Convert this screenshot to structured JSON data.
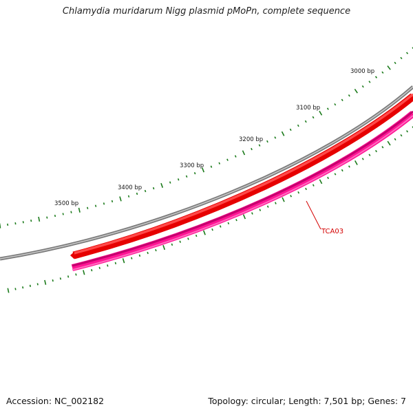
{
  "title": "Chlamydia muridarum Nigg plasmid pMoPn, complete sequence",
  "footer": {
    "accession": "Accession: NC_002182",
    "summary": "Topology: circular; Length: 7,501 bp; Genes: 7"
  },
  "ruler": {
    "tick_labels": [
      "3000 bp",
      "3100 bp",
      "3200 bp",
      "3300 bp",
      "3400 bp",
      "3500 bp"
    ]
  },
  "features": [
    {
      "label": "TCA03",
      "color": "#d40000"
    }
  ],
  "colors": {
    "backbone": "#7a7a7a",
    "forward_feature": "#ff0000",
    "reverse_feature": "#ff1493",
    "tick_marks": "#1a7a1a",
    "feature_label": "#d40000"
  }
}
